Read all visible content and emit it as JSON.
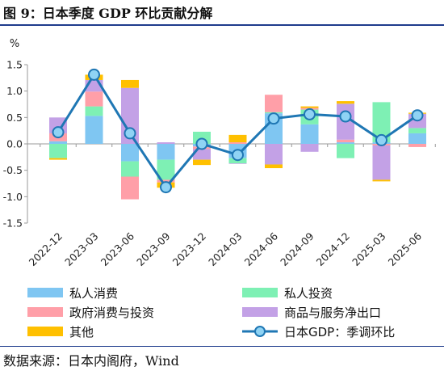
{
  "title": "图 9：日本季度 GDP 环比贡献分解",
  "source": "数据来源：日本内阁府，Wind",
  "chart_data": {
    "type": "bar",
    "stacked": true,
    "unit_label": "%",
    "ylim": [
      -1.5,
      1.5
    ],
    "yticks": [
      -1.5,
      -1.0,
      -0.5,
      0.0,
      0.5,
      1.0,
      1.5
    ],
    "ytick_labels": [
      "-1.5",
      "-1.0",
      "-0.5",
      "0.0",
      "0.5",
      "1.0",
      "1.5"
    ],
    "categories": [
      "2022-12",
      "2023-03",
      "2023-06",
      "2023-09",
      "2023-12",
      "2024-03",
      "2024-06",
      "2024-09",
      "2024-12",
      "2025-03",
      "2025-06"
    ],
    "grid": false,
    "legend_position": "bottom",
    "series": [
      {
        "name": "私人消费",
        "color": "#7fc6f2",
        "values": [
          0.05,
          0.53,
          -0.33,
          -0.3,
          -0.05,
          -0.27,
          0.58,
          0.37,
          0.03,
          0.03,
          0.2
        ]
      },
      {
        "name": "私人投资",
        "color": "#7ef0b4",
        "values": [
          -0.27,
          0.18,
          -0.29,
          -0.38,
          0.23,
          -0.1,
          0.02,
          0.28,
          -0.27,
          0.76,
          0.1
        ]
      },
      {
        "name": "政府消费与投资",
        "color": "#ff9fa8",
        "values": [
          0.15,
          0.28,
          -0.43,
          -0.05,
          -0.05,
          0.03,
          0.33,
          0.03,
          0.05,
          -0.03,
          -0.06
        ]
      },
      {
        "name": "商品与服务净出口",
        "color": "#c3a1e6",
        "values": [
          0.3,
          0.22,
          1.06,
          0.03,
          -0.2,
          -0.01,
          -0.39,
          -0.15,
          0.68,
          -0.65,
          0.27
        ]
      },
      {
        "name": "其他",
        "color": "#ffc000",
        "values": [
          -0.03,
          0.1,
          0.15,
          -0.1,
          -0.1,
          0.14,
          -0.07,
          0.03,
          0.05,
          -0.03,
          0.02
        ]
      }
    ],
    "line": {
      "name": "日本GDP：季调环比",
      "color": "#1f77b4",
      "marker_fill": "#8fd3f4",
      "values": [
        0.22,
        1.31,
        0.2,
        -0.82,
        0.0,
        -0.21,
        0.48,
        0.56,
        0.52,
        0.07,
        0.54
      ]
    }
  }
}
